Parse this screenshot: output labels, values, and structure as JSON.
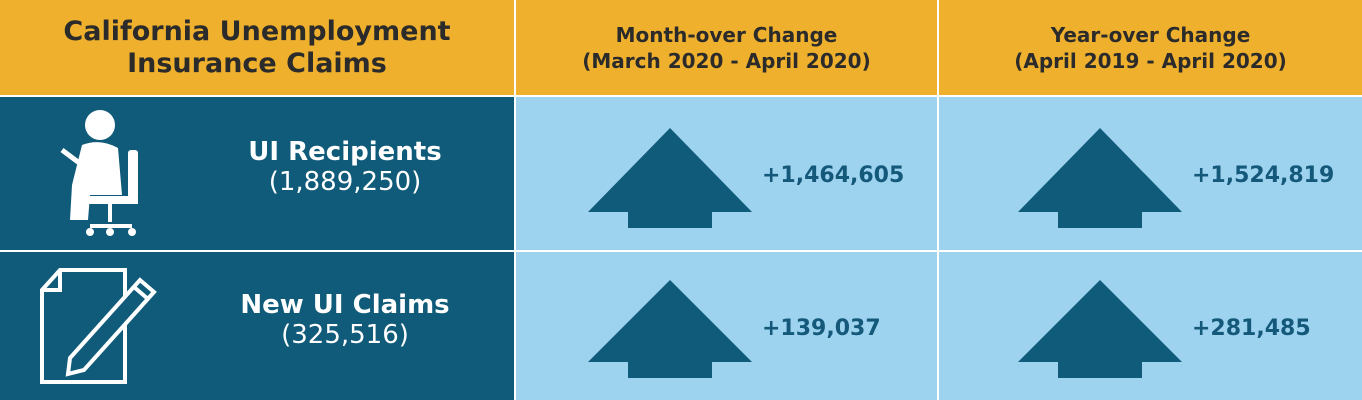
{
  "table": {
    "header": [
      {
        "title": "California Unemployment Insurance Claims"
      },
      {
        "title": "Month-over Change",
        "subtitle": "(March 2020 - April 2020)"
      },
      {
        "title": "Year-over Change",
        "subtitle": "(April 2019 - April 2020)"
      }
    ],
    "rows": [
      {
        "label": "UI Recipients",
        "count": "(1,889,250)",
        "month_change": "+1,464,605",
        "year_change": "+1,524,819"
      },
      {
        "label": "New UI Claims",
        "count": "(325,516)",
        "month_change": "+139,037",
        "year_change": "+281,485"
      }
    ]
  }
}
